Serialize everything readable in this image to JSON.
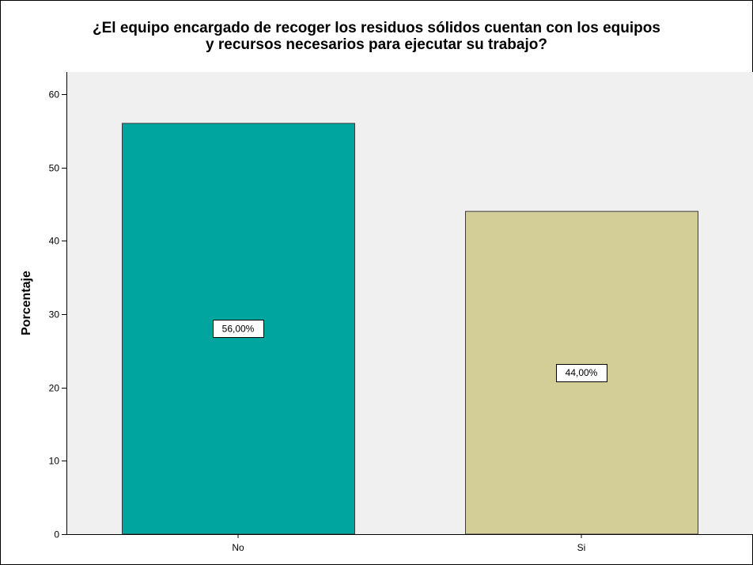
{
  "chart_data": {
    "type": "bar",
    "title_lines": [
      "¿El equipo encargado de recoger los residuos sólidos cuentan con los equipos",
      "y recursos necesarios para ejecutar su trabajo?"
    ],
    "ylabel": "Porcentaje",
    "xlabel": "",
    "categories": [
      "No",
      "Si"
    ],
    "values": [
      56.0,
      44.0
    ],
    "data_labels": [
      "56,00%",
      "44,00%"
    ],
    "ylim": [
      0,
      63
    ],
    "yticks": [
      0,
      10,
      20,
      30,
      40,
      50,
      60
    ],
    "grid": false,
    "legend": "none",
    "colors": {
      "plot_background": "#f0f0f0",
      "bars": [
        "#00a5a0",
        "#d3ce97"
      ],
      "bar_outline": "#3c3c3c",
      "axis": "#000000"
    }
  }
}
